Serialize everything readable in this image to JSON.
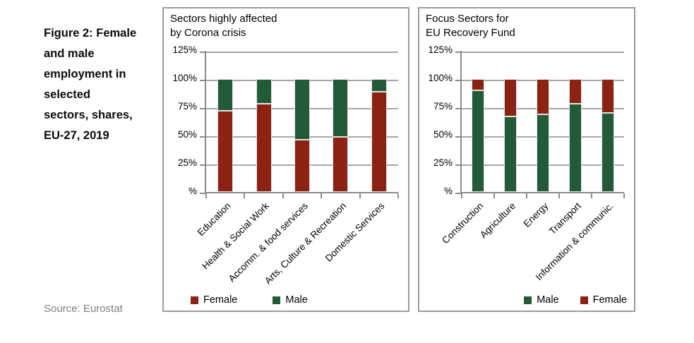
{
  "figure_caption": "Figure 2: Female\nand male\nemployment in\nselected\nsectors, shares,\nEU-27, 2019",
  "source": "Source: Eurostat",
  "colors": {
    "female": "#8b2213",
    "male": "#235b38",
    "gridline": "#a6a6a6",
    "axis": "#8c8c8c",
    "panel_border": "#9c9c9c",
    "source_text": "#7f7f7f"
  },
  "chart_data": [
    {
      "type": "bar",
      "stacked": true,
      "title": "Sectors highly affected\nby Corona crisis",
      "categories": [
        "Education",
        "Health & Social Work",
        "Accomm. & food services",
        "Arts, Culture & Recreation",
        "Domestic Services"
      ],
      "series": [
        {
          "name": "Female",
          "color": "#8b2213",
          "values": [
            72,
            78,
            46,
            49,
            89
          ]
        },
        {
          "name": "Male",
          "color": "#235b38",
          "values": [
            28,
            22,
            54,
            51,
            11
          ]
        }
      ],
      "ylim": [
        0,
        125
      ],
      "y_tick_values": [
        0,
        25,
        50,
        75,
        100,
        125
      ],
      "y_tick_labels": [
        "%",
        "25%",
        "50%",
        "75%",
        "100%",
        "125%"
      ],
      "grid": true,
      "legend_position": "bottom-left",
      "legend": [
        {
          "name": "Female",
          "color": "#8b2213"
        },
        {
          "name": "Male",
          "color": "#235b38"
        }
      ]
    },
    {
      "type": "bar",
      "stacked": true,
      "title": "Focus Sectors for\nEU Recovery Fund",
      "categories": [
        "Construction",
        "Agriculture",
        "Energy",
        "Transport",
        "Information & communic."
      ],
      "series": [
        {
          "name": "Male",
          "color": "#235b38",
          "values": [
            90,
            67,
            69,
            78,
            70
          ]
        },
        {
          "name": "Female",
          "color": "#8b2213",
          "values": [
            10,
            33,
            31,
            22,
            30
          ]
        }
      ],
      "ylim": [
        0,
        125
      ],
      "y_tick_values": [
        0,
        25,
        50,
        75,
        100,
        125
      ],
      "y_tick_labels": [
        "%",
        "25%",
        "50%",
        "75%",
        "100%",
        "125%"
      ],
      "grid": true,
      "legend_position": "bottom-right",
      "legend": [
        {
          "name": "Male",
          "color": "#235b38"
        },
        {
          "name": "Female",
          "color": "#8b2213"
        }
      ]
    }
  ]
}
